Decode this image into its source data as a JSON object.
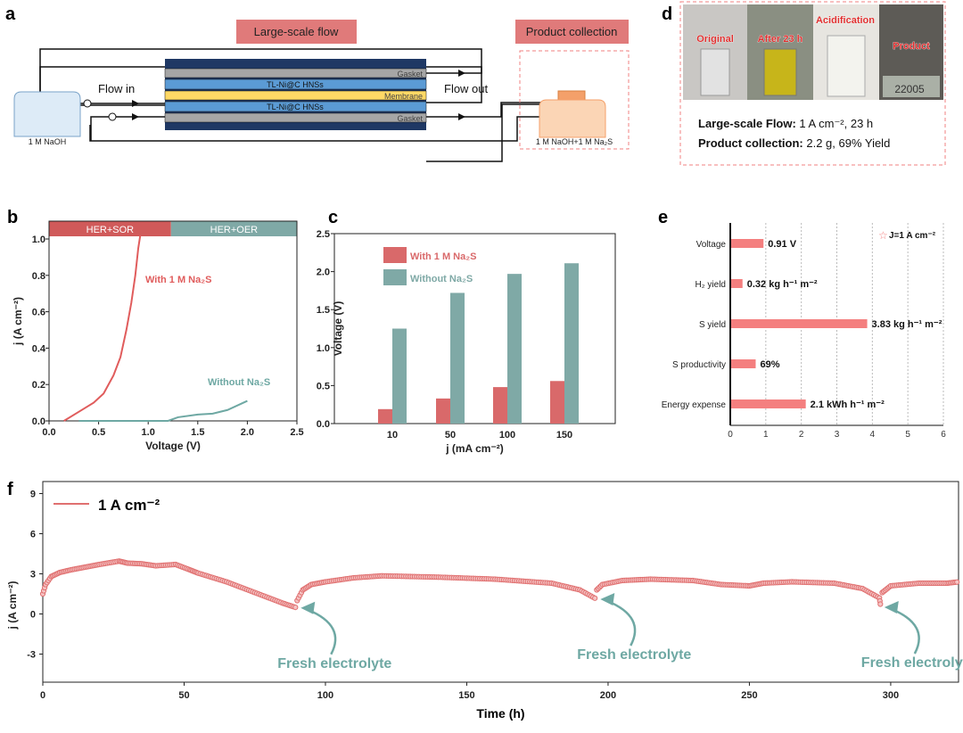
{
  "panel_labels": {
    "a": "a",
    "b": "b",
    "c": "c",
    "d": "d",
    "e": "e",
    "f": "f"
  },
  "diagram_a": {
    "large_scale_flow": "Large-scale flow",
    "product_collection": "Product collection",
    "gasket_top": "Gasket",
    "electrode_top": "TL-Ni@C HNSs",
    "membrane": "Membrane",
    "electrode_bottom": "TL-Ni@C HNSs",
    "gasket_bottom": "Gasket",
    "flow_in": "Flow in",
    "flow_out": "Flow out",
    "left_reservoir": "1 M NaOH",
    "right_reservoir": "1 M NaOH+1 M Na₂S",
    "colors": {
      "tag": "#e07a7a",
      "navy": "#1f3864",
      "gasket": "#a6a6a6",
      "electrode": "#5b9bd5",
      "membrane": "#ffd966",
      "left_bottle": "#bdd7ee",
      "right_bottle": "#f4b183"
    }
  },
  "photos_d": {
    "labels": [
      "Original",
      "After 23 h",
      "Acidification",
      "Product"
    ],
    "balance_reading": "22005",
    "line1_bold": "Large-scale Flow:",
    "line1_rest": " 1 A cm⁻², 23 h",
    "line2_bold": "Product collection:",
    "line2_rest": " 2.2 g, 69% Yield"
  },
  "chart_data": [
    {
      "id": "b",
      "type": "line",
      "xlabel": "Voltage (V)",
      "ylabel": "j (A cm⁻²)",
      "xlim": [
        0,
        2.5
      ],
      "ylim": [
        0,
        1.1
      ],
      "xticks": [
        "0.0",
        "0.5",
        "1.0",
        "1.5",
        "2.0",
        "2.5"
      ],
      "yticks": [
        "0.0",
        "0.2",
        "0.4",
        "0.6",
        "0.8",
        "1.0"
      ],
      "regions": [
        {
          "label": "HER+SOR",
          "from": 0,
          "to": 1.23,
          "color": "#d05a5a"
        },
        {
          "label": "HER+OER",
          "from": 1.23,
          "to": 2.5,
          "color": "#7fa9a6"
        }
      ],
      "series": [
        {
          "name": "With 1 M Na₂S",
          "color": "#e05c5c",
          "points": [
            [
              0.15,
              0
            ],
            [
              0.3,
              0.05
            ],
            [
              0.45,
              0.1
            ],
            [
              0.55,
              0.15
            ],
            [
              0.65,
              0.25
            ],
            [
              0.72,
              0.35
            ],
            [
              0.78,
              0.5
            ],
            [
              0.83,
              0.65
            ],
            [
              0.87,
              0.8
            ],
            [
              0.9,
              0.95
            ],
            [
              0.92,
              1.02
            ]
          ]
        },
        {
          "name": "Without Na₂S",
          "color": "#6ea8a3",
          "points": [
            [
              0.3,
              0
            ],
            [
              1.2,
              0
            ],
            [
              1.3,
              0.02
            ],
            [
              1.5,
              0.035
            ],
            [
              1.65,
              0.04
            ],
            [
              1.8,
              0.06
            ],
            [
              2.0,
              0.11
            ]
          ]
        }
      ]
    },
    {
      "id": "c",
      "type": "bar",
      "xlabel": "j (mA cm⁻²)",
      "ylabel": "Voltage (V)",
      "categories": [
        "10",
        "50",
        "100",
        "150"
      ],
      "ylim": [
        0,
        2.5
      ],
      "yticks": [
        "0.0",
        "0.5",
        "1.0",
        "1.5",
        "2.0",
        "2.5"
      ],
      "series": [
        {
          "name": "With 1 M Na₂S",
          "color": "#d9696a",
          "values": [
            0.19,
            0.33,
            0.48,
            0.56
          ]
        },
        {
          "name": "Without Na₂S",
          "color": "#7fa9a6",
          "values": [
            1.25,
            1.72,
            1.97,
            2.11
          ]
        }
      ],
      "legend": "top-left"
    },
    {
      "id": "e",
      "type": "bar",
      "orientation": "horizontal",
      "categories": [
        "Voltage",
        "H₂ yield",
        "S yield",
        "S productivity",
        "Energy expense"
      ],
      "values": [
        0.91,
        0.32,
        3.83,
        0.69,
        2.1
      ],
      "value_labels": [
        "0.91 V",
        "0.32 kg h⁻¹ m⁻²",
        "3.83 kg h⁻¹ m⁻²",
        "69%",
        "2.1 kWh h⁻¹ m⁻²"
      ],
      "xlim": [
        0,
        6
      ],
      "xticks": [
        "0",
        "1",
        "2",
        "3",
        "4",
        "5",
        "6"
      ],
      "color": "#f47f7f",
      "legend_text": "J=1 A cm⁻²",
      "legend": "top-right"
    },
    {
      "id": "f",
      "type": "scatter",
      "xlabel": "Time (h)",
      "ylabel": "j (A cm⁻²)",
      "xlim": [
        0,
        324
      ],
      "ylim": [
        -5.1,
        9.9
      ],
      "xticks": [
        "0",
        "50",
        "100",
        "150",
        "200",
        "250",
        "300"
      ],
      "yticks": [
        "-3",
        "0",
        "3",
        "6",
        "9"
      ],
      "legend_text": "1 A cm⁻²",
      "legend": "top-left",
      "color": "#e07070",
      "segments": [
        [
          [
            0,
            1.5
          ],
          [
            1,
            2.2
          ],
          [
            3,
            2.8
          ],
          [
            6,
            3.1
          ],
          [
            10,
            3.3
          ],
          [
            15,
            3.5
          ],
          [
            20,
            3.7
          ],
          [
            27,
            3.95
          ],
          [
            30,
            3.8
          ],
          [
            35,
            3.75
          ],
          [
            40,
            3.6
          ],
          [
            47,
            3.7
          ],
          [
            52,
            3.3
          ],
          [
            55,
            3.05
          ],
          [
            65,
            2.4
          ],
          [
            75,
            1.6
          ],
          [
            85,
            0.8
          ],
          [
            90,
            0.45
          ]
        ],
        [
          [
            90,
            1.0
          ],
          [
            92,
            1.8
          ],
          [
            95,
            2.2
          ],
          [
            100,
            2.4
          ],
          [
            110,
            2.7
          ],
          [
            120,
            2.85
          ],
          [
            140,
            2.75
          ],
          [
            160,
            2.6
          ],
          [
            180,
            2.3
          ],
          [
            190,
            1.8
          ],
          [
            196,
            1.1
          ]
        ],
        [
          [
            196,
            1.8
          ],
          [
            198,
            2.2
          ],
          [
            205,
            2.5
          ],
          [
            215,
            2.6
          ],
          [
            230,
            2.5
          ],
          [
            240,
            2.2
          ],
          [
            250,
            2.1
          ],
          [
            255,
            2.3
          ],
          [
            265,
            2.4
          ],
          [
            280,
            2.3
          ],
          [
            290,
            1.9
          ],
          [
            296,
            1.2
          ],
          [
            296.5,
            0.5
          ]
        ],
        [
          [
            297,
            1.6
          ],
          [
            300,
            2.1
          ],
          [
            310,
            2.3
          ],
          [
            320,
            2.3
          ],
          [
            324,
            2.4
          ]
        ]
      ],
      "annotations": [
        {
          "text": "Fresh electrolyte",
          "x": 90,
          "y": 0.45
        },
        {
          "text": "Fresh electrolyte",
          "x": 196,
          "y": 1.1
        },
        {
          "text": "Fresh electrolyte",
          "x": 296.5,
          "y": 0.5
        }
      ],
      "annotation_color": "#6ea8a3"
    }
  ]
}
